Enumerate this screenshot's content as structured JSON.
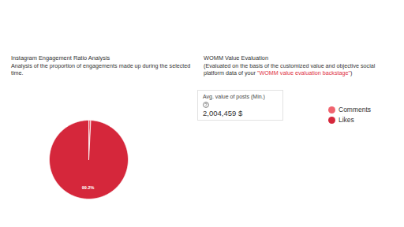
{
  "chart_data": {
    "type": "pie",
    "title": "Instagram Engagement Ratio Analysis",
    "subtitle": "Analysis of the proportion of engagements made up during the selected time.",
    "categories": [
      "Comments",
      "Likes"
    ],
    "values": [
      0.8,
      99.2
    ],
    "value_labels": [
      null,
      "99.2%"
    ],
    "colors": [
      "#f0636e",
      "#d5273b"
    ],
    "data_labels": true,
    "legend": "right"
  },
  "womm_panel": {
    "title": "WOMM Value Evaluation",
    "subtitle_before": "(Evaluated on the basis of the customized value and objective social platform data of your ",
    "subtitle_link": "\"WOMM value evaluation backstage\"",
    "subtitle_after": ")",
    "card_label": "Avg. value of posts (Min.)",
    "card_value": 2004459,
    "card_unit": "$"
  }
}
